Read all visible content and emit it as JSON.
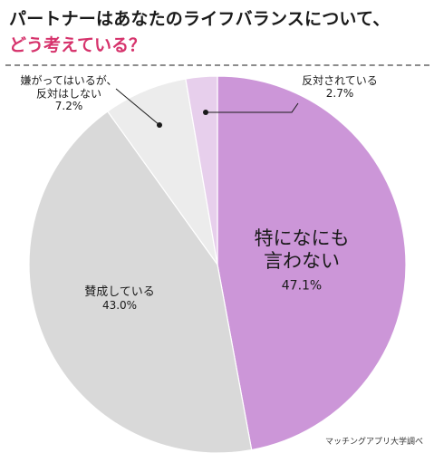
{
  "title": {
    "line1": "パートナーはあなたのライフバランスについて、",
    "line2": "どう考えている？",
    "line2_color": "#d6336c"
  },
  "source": "マッチングアプリ大学調べ",
  "chart_data": {
    "type": "pie",
    "start": "top",
    "direction": "clockwise",
    "slices": [
      {
        "label": "特になにも\n言わない",
        "value": 47.1,
        "value_label": "47.1%",
        "color": "#cc96d8"
      },
      {
        "label": "賛成している",
        "value": 43.0,
        "value_label": "43.0%",
        "color": "#d9d9d9"
      },
      {
        "label": "嫌がってはいるが、\n反対はしない",
        "value": 7.2,
        "value_label": "7.2%",
        "color": "#ececec"
      },
      {
        "label": "反対されている",
        "value": 2.7,
        "value_label": "2.7%",
        "color": "#e7cfec"
      }
    ]
  }
}
